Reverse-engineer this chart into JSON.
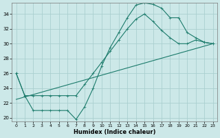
{
  "xlabel": "Humidex (Indice chaleur)",
  "bg_color": "#cce8e8",
  "grid_color": "#aacfcf",
  "line_color": "#1a7a6a",
  "xlim": [
    -0.5,
    23.5
  ],
  "ylim": [
    19.5,
    35.5
  ],
  "yticks": [
    20,
    22,
    24,
    26,
    28,
    30,
    32,
    34
  ],
  "xticks": [
    0,
    1,
    2,
    3,
    4,
    5,
    6,
    7,
    8,
    9,
    10,
    11,
    12,
    13,
    14,
    15,
    16,
    17,
    18,
    19,
    20,
    21,
    22,
    23
  ],
  "line1_x": [
    0,
    1,
    2,
    3,
    4,
    5,
    6,
    7,
    8,
    9,
    10,
    11,
    12,
    13,
    14,
    15,
    16,
    17,
    18,
    19,
    20,
    21,
    22,
    23
  ],
  "line1_y": [
    26.0,
    23.0,
    21.0,
    21.0,
    21.0,
    21.0,
    21.0,
    19.8,
    21.5,
    24.0,
    27.0,
    29.5,
    31.5,
    33.5,
    35.2,
    35.5,
    35.3,
    34.8,
    33.5,
    33.5,
    31.5,
    30.8,
    30.2,
    30.0
  ],
  "line2_x": [
    0,
    1,
    2,
    3,
    4,
    5,
    6,
    7,
    8,
    9,
    10,
    11,
    12,
    13,
    14,
    15,
    16,
    17,
    18,
    19,
    20,
    21,
    22,
    23
  ],
  "line2_y": [
    26.0,
    23.0,
    23.0,
    23.0,
    23.0,
    23.0,
    23.0,
    23.0,
    24.5,
    26.0,
    27.5,
    29.0,
    30.5,
    32.0,
    33.3,
    34.0,
    33.0,
    31.8,
    30.8,
    30.0,
    30.0,
    30.5,
    30.2,
    30.0
  ],
  "line3_x": [
    0,
    23
  ],
  "line3_y": [
    22.5,
    30.0
  ]
}
